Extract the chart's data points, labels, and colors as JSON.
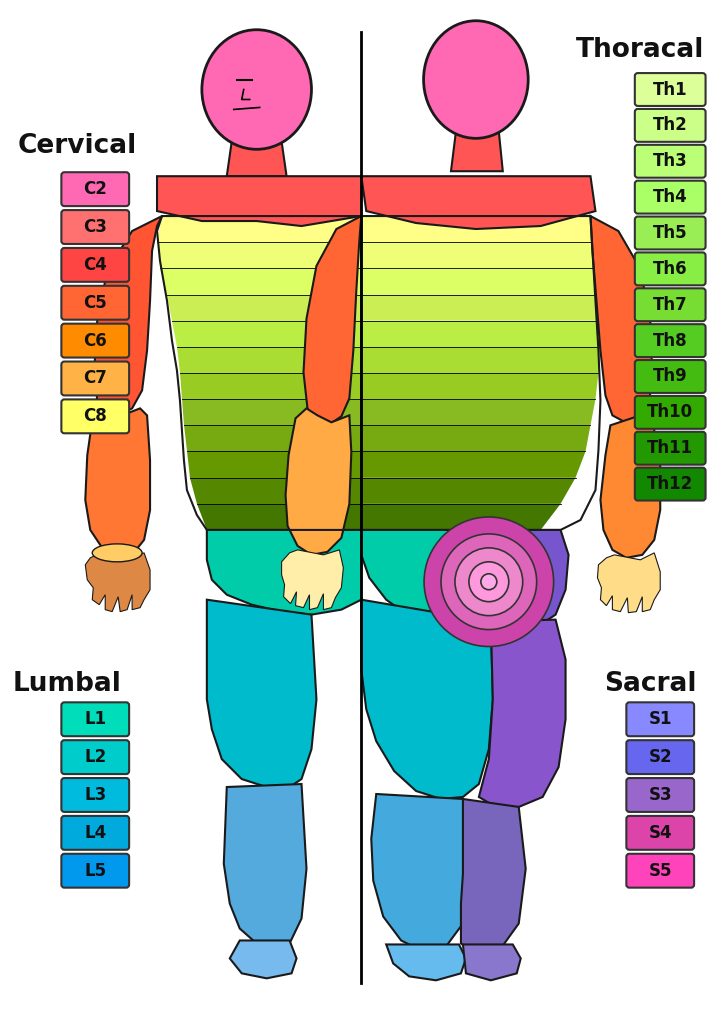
{
  "background_color": "#ffffff",
  "cervical_title": "Cervical",
  "cervical_labels": [
    "C2",
    "C3",
    "C4",
    "C5",
    "C6",
    "C7",
    "C8"
  ],
  "cervical_colors": [
    "#FF69B4",
    "#FF7070",
    "#FF4444",
    "#FF6633",
    "#FF8C00",
    "#FFB347",
    "#FFFF66"
  ],
  "thoracal_title": "Thoracal",
  "thoracal_labels": [
    "Th1",
    "Th2",
    "Th3",
    "Th4",
    "Th5",
    "Th6",
    "Th7",
    "Th8",
    "Th9",
    "Th10",
    "Th11",
    "Th12"
  ],
  "thoracal_colors": [
    "#DDFF99",
    "#CCFF88",
    "#BBFF77",
    "#AAFF66",
    "#99EE55",
    "#88EE44",
    "#77DD33",
    "#55CC22",
    "#44BB11",
    "#33AA00",
    "#229900",
    "#118800"
  ],
  "lumbal_title": "Lumbal",
  "lumbal_labels": [
    "L1",
    "L2",
    "L3",
    "L4",
    "L5"
  ],
  "lumbal_colors": [
    "#00DDBB",
    "#00CCCC",
    "#00BBDD",
    "#00AADD",
    "#0099EE"
  ],
  "sacral_title": "Sacral",
  "sacral_labels": [
    "S1",
    "S2",
    "S3",
    "S4",
    "S5"
  ],
  "sacral_colors": [
    "#8888FF",
    "#6666EE",
    "#9966CC",
    "#DD44AA",
    "#FF44BB"
  ]
}
